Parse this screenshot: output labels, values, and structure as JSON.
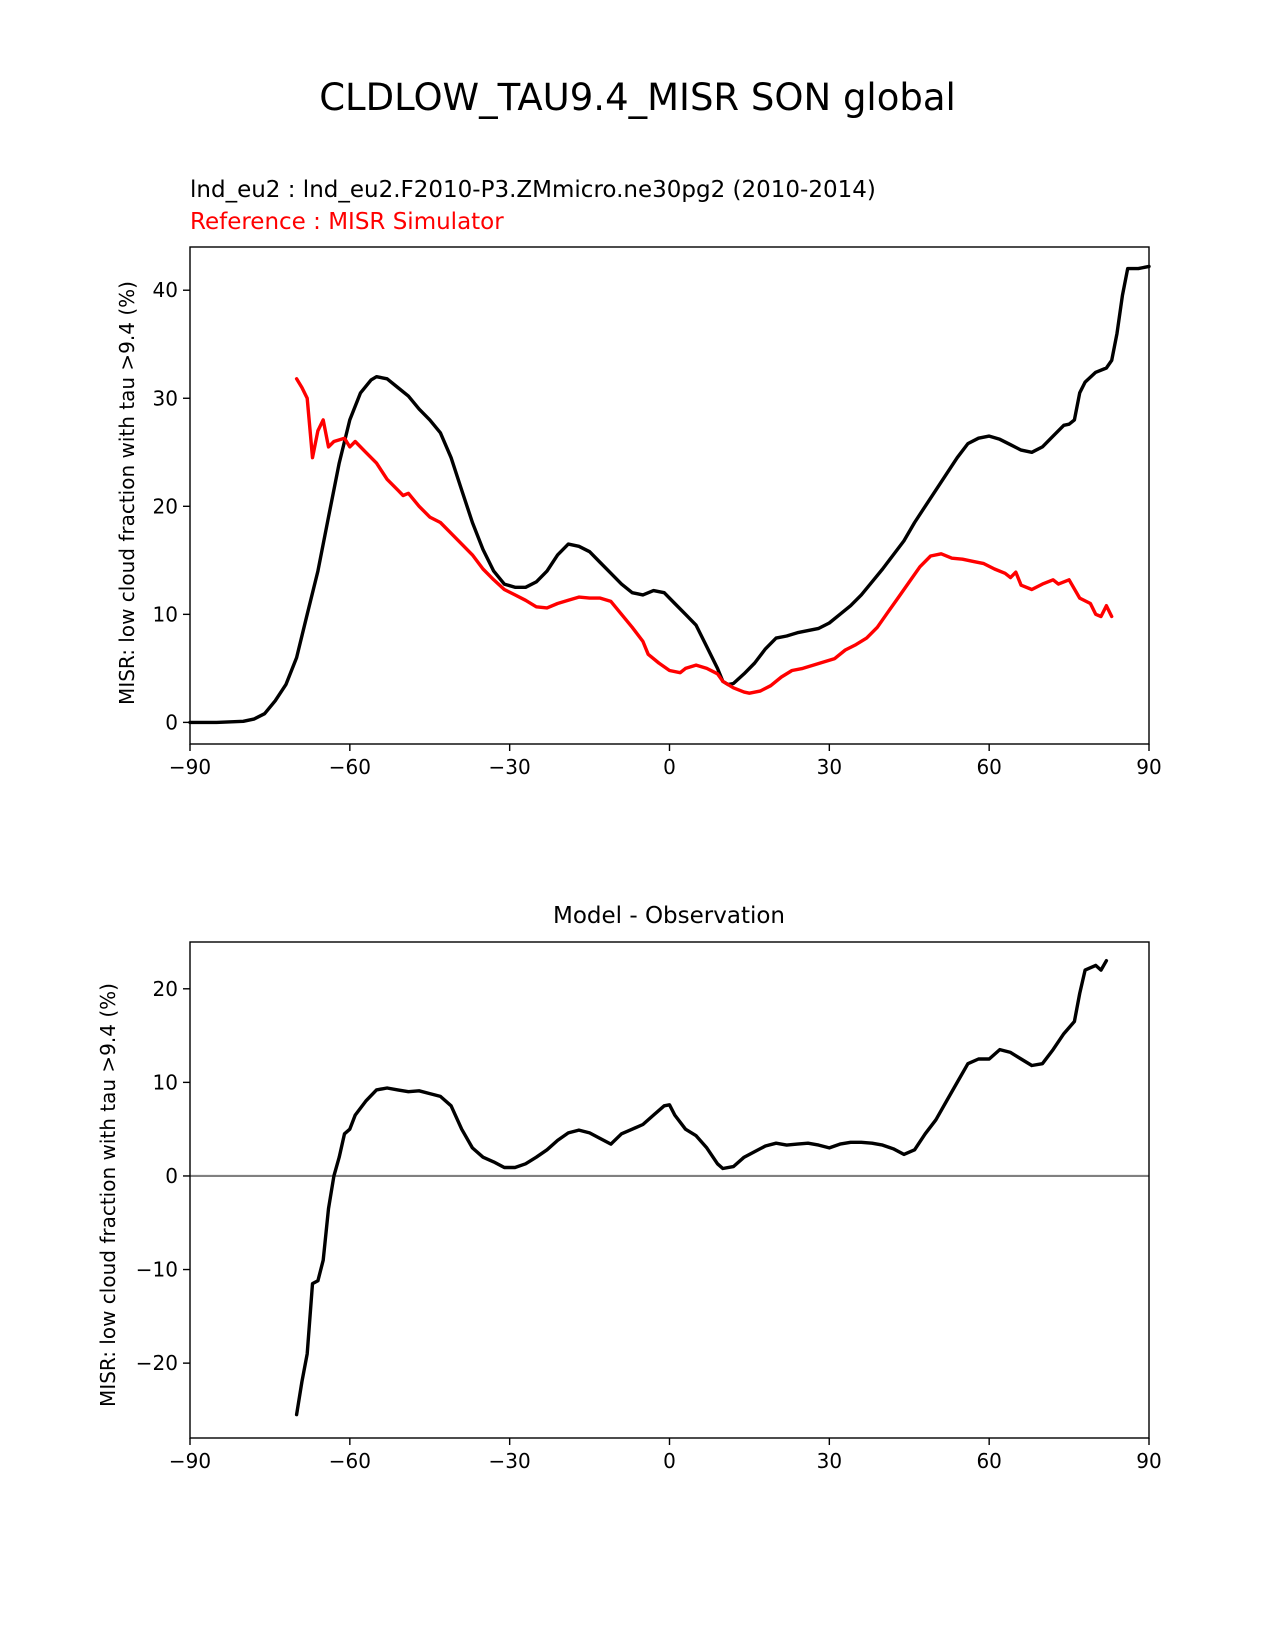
{
  "figure": {
    "suptitle": "CLDLOW_TAU9.4_MISR SON global"
  },
  "chart_data": [
    {
      "type": "line",
      "name": "zonal-mean",
      "title_lines": [
        {
          "text": "lnd_eu2 : lnd_eu2.F2010-P3.ZMmicro.ne30pg2 (2010-2014)",
          "color": "#000000"
        },
        {
          "text": "Reference : MISR Simulator",
          "color": "#ff0000"
        }
      ],
      "xlabel": "",
      "ylabel": "MISR: low cloud fraction with tau >9.4 (%)",
      "xlim": [
        -90,
        90
      ],
      "ylim": [
        -2,
        44
      ],
      "xticks": [
        -90,
        -60,
        -30,
        0,
        30,
        60,
        90
      ],
      "yticks": [
        0,
        10,
        20,
        30,
        40
      ],
      "series": [
        {
          "name": "lnd_eu2",
          "color": "#000000",
          "points": [
            [
              -90,
              0
            ],
            [
              -85,
              0
            ],
            [
              -80,
              0.1
            ],
            [
              -78,
              0.3
            ],
            [
              -76,
              0.8
            ],
            [
              -74,
              2
            ],
            [
              -72,
              3.5
            ],
            [
              -70,
              6
            ],
            [
              -68,
              10
            ],
            [
              -66,
              14
            ],
            [
              -64,
              19
            ],
            [
              -62,
              24
            ],
            [
              -60,
              28
            ],
            [
              -58,
              30.5
            ],
            [
              -56,
              31.7
            ],
            [
              -55,
              32
            ],
            [
              -53,
              31.8
            ],
            [
              -51,
              31
            ],
            [
              -49,
              30.2
            ],
            [
              -47,
              29
            ],
            [
              -45,
              28
            ],
            [
              -43,
              26.8
            ],
            [
              -41,
              24.5
            ],
            [
              -39,
              21.5
            ],
            [
              -37,
              18.5
            ],
            [
              -35,
              16
            ],
            [
              -33,
              14
            ],
            [
              -31,
              12.8
            ],
            [
              -29,
              12.5
            ],
            [
              -27,
              12.5
            ],
            [
              -25,
              13
            ],
            [
              -23,
              14
            ],
            [
              -21,
              15.5
            ],
            [
              -19,
              16.5
            ],
            [
              -17,
              16.3
            ],
            [
              -15,
              15.8
            ],
            [
              -13,
              14.8
            ],
            [
              -11,
              13.8
            ],
            [
              -9,
              12.8
            ],
            [
              -7,
              12
            ],
            [
              -5,
              11.8
            ],
            [
              -3,
              12.2
            ],
            [
              -1,
              12
            ],
            [
              1,
              11
            ],
            [
              3,
              10
            ],
            [
              5,
              9
            ],
            [
              7,
              7
            ],
            [
              9,
              5
            ],
            [
              10,
              3.8
            ],
            [
              11,
              3.5
            ],
            [
              12,
              3.6
            ],
            [
              14,
              4.5
            ],
            [
              16,
              5.5
            ],
            [
              18,
              6.8
            ],
            [
              20,
              7.8
            ],
            [
              22,
              8
            ],
            [
              24,
              8.3
            ],
            [
              26,
              8.5
            ],
            [
              28,
              8.7
            ],
            [
              30,
              9.2
            ],
            [
              32,
              10
            ],
            [
              34,
              10.8
            ],
            [
              36,
              11.8
            ],
            [
              38,
              13
            ],
            [
              40,
              14.2
            ],
            [
              42,
              15.5
            ],
            [
              44,
              16.8
            ],
            [
              46,
              18.5
            ],
            [
              48,
              20
            ],
            [
              50,
              21.5
            ],
            [
              52,
              23
            ],
            [
              54,
              24.5
            ],
            [
              56,
              25.8
            ],
            [
              58,
              26.3
            ],
            [
              60,
              26.5
            ],
            [
              62,
              26.2
            ],
            [
              64,
              25.7
            ],
            [
              66,
              25.2
            ],
            [
              68,
              25
            ],
            [
              70,
              25.5
            ],
            [
              72,
              26.5
            ],
            [
              74,
              27.5
            ],
            [
              75,
              27.6
            ],
            [
              76,
              28
            ],
            [
              77,
              30.5
            ],
            [
              78,
              31.5
            ],
            [
              80,
              32.4
            ],
            [
              82,
              32.8
            ],
            [
              83,
              33.5
            ],
            [
              84,
              36
            ],
            [
              85,
              39.5
            ],
            [
              86,
              42
            ],
            [
              88,
              42
            ],
            [
              90,
              42.2
            ]
          ]
        },
        {
          "name": "MISR Simulator",
          "color": "#ff0000",
          "points": [
            [
              -70,
              31.8
            ],
            [
              -69,
              31
            ],
            [
              -68,
              30
            ],
            [
              -67,
              24.5
            ],
            [
              -66,
              27
            ],
            [
              -65,
              28
            ],
            [
              -64,
              25.5
            ],
            [
              -63,
              26
            ],
            [
              -61,
              26.3
            ],
            [
              -60,
              25.5
            ],
            [
              -59,
              26
            ],
            [
              -57,
              25
            ],
            [
              -55,
              24
            ],
            [
              -53,
              22.5
            ],
            [
              -51,
              21.5
            ],
            [
              -50,
              21
            ],
            [
              -49,
              21.2
            ],
            [
              -47,
              20
            ],
            [
              -45,
              19
            ],
            [
              -43,
              18.5
            ],
            [
              -41,
              17.5
            ],
            [
              -39,
              16.5
            ],
            [
              -37,
              15.5
            ],
            [
              -35,
              14.2
            ],
            [
              -33,
              13.2
            ],
            [
              -31,
              12.3
            ],
            [
              -29,
              11.8
            ],
            [
              -27,
              11.3
            ],
            [
              -25,
              10.7
            ],
            [
              -23,
              10.6
            ],
            [
              -21,
              11
            ],
            [
              -19,
              11.3
            ],
            [
              -17,
              11.6
            ],
            [
              -15,
              11.5
            ],
            [
              -13,
              11.5
            ],
            [
              -11,
              11.2
            ],
            [
              -9,
              10
            ],
            [
              -7,
              8.8
            ],
            [
              -5,
              7.5
            ],
            [
              -4,
              6.3
            ],
            [
              -2,
              5.5
            ],
            [
              0,
              4.8
            ],
            [
              2,
              4.6
            ],
            [
              3,
              5
            ],
            [
              5,
              5.3
            ],
            [
              7,
              5
            ],
            [
              9,
              4.5
            ],
            [
              10,
              3.8
            ],
            [
              12,
              3.2
            ],
            [
              14,
              2.8
            ],
            [
              15,
              2.7
            ],
            [
              17,
              2.9
            ],
            [
              19,
              3.4
            ],
            [
              21,
              4.2
            ],
            [
              23,
              4.8
            ],
            [
              25,
              5
            ],
            [
              27,
              5.3
            ],
            [
              29,
              5.6
            ],
            [
              31,
              5.9
            ],
            [
              33,
              6.7
            ],
            [
              35,
              7.2
            ],
            [
              37,
              7.8
            ],
            [
              39,
              8.8
            ],
            [
              41,
              10.2
            ],
            [
              43,
              11.6
            ],
            [
              45,
              13
            ],
            [
              47,
              14.4
            ],
            [
              49,
              15.4
            ],
            [
              51,
              15.6
            ],
            [
              53,
              15.2
            ],
            [
              55,
              15.1
            ],
            [
              57,
              14.9
            ],
            [
              59,
              14.7
            ],
            [
              61,
              14.2
            ],
            [
              63,
              13.8
            ],
            [
              64,
              13.4
            ],
            [
              65,
              13.9
            ],
            [
              66,
              12.7
            ],
            [
              68,
              12.3
            ],
            [
              70,
              12.8
            ],
            [
              72,
              13.2
            ],
            [
              73,
              12.8
            ],
            [
              75,
              13.2
            ],
            [
              77,
              11.5
            ],
            [
              79,
              11
            ],
            [
              80,
              10
            ],
            [
              81,
              9.8
            ],
            [
              82,
              10.8
            ],
            [
              83,
              9.8
            ]
          ]
        }
      ]
    },
    {
      "type": "line",
      "name": "difference",
      "title": "Model - Observation",
      "xlabel": "",
      "ylabel": "MISR: low cloud fraction with tau >9.4 (%)",
      "xlim": [
        -90,
        90
      ],
      "ylim": [
        -28,
        25
      ],
      "xticks": [
        -90,
        -60,
        -30,
        0,
        30,
        60,
        90
      ],
      "yticks": [
        -20,
        -10,
        0,
        10,
        20
      ],
      "zero_line_color": "#808080",
      "series": [
        {
          "name": "Model - Observation",
          "color": "#000000",
          "points": [
            [
              -70,
              -25.5
            ],
            [
              -69,
              -22
            ],
            [
              -68,
              -19
            ],
            [
              -67,
              -11.5
            ],
            [
              -66,
              -11.2
            ],
            [
              -65,
              -9
            ],
            [
              -64,
              -3.5
            ],
            [
              -63,
              0
            ],
            [
              -62,
              2
            ],
            [
              -61,
              4.5
            ],
            [
              -60,
              5
            ],
            [
              -59,
              6.5
            ],
            [
              -57,
              8
            ],
            [
              -55,
              9.2
            ],
            [
              -53,
              9.4
            ],
            [
              -51,
              9.2
            ],
            [
              -49,
              9
            ],
            [
              -47,
              9.1
            ],
            [
              -45,
              8.8
            ],
            [
              -43,
              8.5
            ],
            [
              -41,
              7.5
            ],
            [
              -39,
              5
            ],
            [
              -37,
              3
            ],
            [
              -35,
              2
            ],
            [
              -33,
              1.5
            ],
            [
              -31,
              0.9
            ],
            [
              -29,
              0.9
            ],
            [
              -27,
              1.3
            ],
            [
              -25,
              2
            ],
            [
              -23,
              2.8
            ],
            [
              -21,
              3.8
            ],
            [
              -19,
              4.6
            ],
            [
              -17,
              4.9
            ],
            [
              -15,
              4.6
            ],
            [
              -13,
              4
            ],
            [
              -11,
              3.4
            ],
            [
              -9,
              4.5
            ],
            [
              -7,
              5
            ],
            [
              -5,
              5.5
            ],
            [
              -3,
              6.5
            ],
            [
              -1,
              7.5
            ],
            [
              0,
              7.6
            ],
            [
              1,
              6.5
            ],
            [
              3,
              5
            ],
            [
              5,
              4.3
            ],
            [
              7,
              3
            ],
            [
              9,
              1.3
            ],
            [
              10,
              0.8
            ],
            [
              12,
              1
            ],
            [
              14,
              2
            ],
            [
              16,
              2.6
            ],
            [
              18,
              3.2
            ],
            [
              20,
              3.5
            ],
            [
              22,
              3.3
            ],
            [
              24,
              3.4
            ],
            [
              26,
              3.5
            ],
            [
              28,
              3.3
            ],
            [
              30,
              3
            ],
            [
              32,
              3.4
            ],
            [
              34,
              3.6
            ],
            [
              36,
              3.6
            ],
            [
              38,
              3.5
            ],
            [
              40,
              3.3
            ],
            [
              42,
              2.9
            ],
            [
              44,
              2.3
            ],
            [
              46,
              2.8
            ],
            [
              48,
              4.5
            ],
            [
              50,
              6
            ],
            [
              52,
              8
            ],
            [
              54,
              10
            ],
            [
              56,
              12
            ],
            [
              58,
              12.5
            ],
            [
              60,
              12.5
            ],
            [
              62,
              13.5
            ],
            [
              64,
              13.2
            ],
            [
              66,
              12.5
            ],
            [
              68,
              11.8
            ],
            [
              70,
              12
            ],
            [
              72,
              13.5
            ],
            [
              74,
              15.2
            ],
            [
              76,
              16.5
            ],
            [
              77,
              19.5
            ],
            [
              78,
              22
            ],
            [
              80,
              22.5
            ],
            [
              81,
              22
            ],
            [
              82,
              23
            ]
          ]
        }
      ]
    }
  ]
}
